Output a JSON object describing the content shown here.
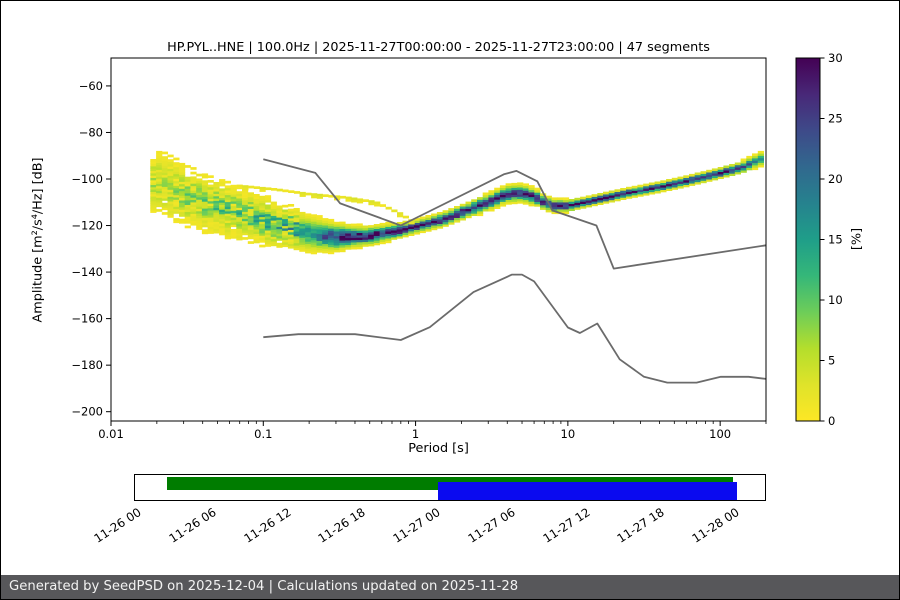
{
  "page": {
    "background": "#ffffff",
    "border_color": "#000000"
  },
  "footer": {
    "text": "Generated by SeedPSD on 2025-12-04 | Calculations updated on 2025-11-28",
    "background": "#57575a",
    "text_color": "#f2f2f2"
  },
  "chart_data": {
    "type": "heatmap",
    "title": "HP.PYL..HNE | 100.0Hz | 2025-11-27T00:00:00 - 2025-11-27T23:00:00 | 47 segments",
    "xlabel": "Period [s]",
    "ylabel": "Amplitude [m²/s⁴/Hz] [dB]",
    "xscale": "log",
    "xlim": [
      0.01,
      200
    ],
    "ylim": [
      -204,
      -48
    ],
    "xticks": [
      0.01,
      0.1,
      1,
      10,
      100
    ],
    "xtick_labels": [
      "0.01",
      "0.1",
      "1",
      "10",
      "100"
    ],
    "yticks": [
      -60,
      -80,
      -100,
      -120,
      -140,
      -160,
      -180,
      -200
    ],
    "ytick_labels": [
      "−60",
      "−80",
      "−100",
      "−120",
      "−140",
      "−160",
      "−180",
      "−200"
    ],
    "grid": false,
    "colorbar": {
      "label": "[%]",
      "min": 0,
      "max": 30,
      "ticks": [
        0,
        5,
        10,
        15,
        20,
        25,
        30
      ],
      "tick_labels": [
        "0",
        "5",
        "10",
        "15",
        "20",
        "25",
        "30"
      ],
      "colormap": "viridis_r"
    },
    "noise_models": {
      "color": "#6b6b6b",
      "high": [
        [
          0.1,
          -91.5
        ],
        [
          0.22,
          -97.4
        ],
        [
          0.32,
          -110.5
        ],
        [
          0.8,
          -120.0
        ],
        [
          3.8,
          -98.0
        ],
        [
          4.6,
          -96.5
        ],
        [
          6.3,
          -101.0
        ],
        [
          7.9,
          -113.5
        ],
        [
          15.4,
          -120.0
        ],
        [
          20.0,
          -138.5
        ],
        [
          200.0,
          -128.5
        ]
      ],
      "low": [
        [
          0.1,
          -168.0
        ],
        [
          0.17,
          -166.7
        ],
        [
          0.4,
          -166.7
        ],
        [
          0.8,
          -169.2
        ],
        [
          1.24,
          -163.7
        ],
        [
          2.4,
          -148.6
        ],
        [
          4.3,
          -141.1
        ],
        [
          5.0,
          -141.1
        ],
        [
          6.0,
          -144.0
        ],
        [
          10.0,
          -163.8
        ],
        [
          12.0,
          -166.2
        ],
        [
          15.6,
          -162.1
        ],
        [
          21.9,
          -177.5
        ],
        [
          31.6,
          -185.0
        ],
        [
          45.0,
          -187.5
        ],
        [
          70.0,
          -187.5
        ],
        [
          101.0,
          -185.0
        ],
        [
          154.0,
          -185.0
        ],
        [
          200.0,
          -185.9
        ]
      ]
    },
    "histogram": {
      "period_range": [
        0.019,
        192
      ],
      "db_bin": 1,
      "mode": [
        [
          0.02,
          -101
        ],
        [
          0.03,
          -107
        ],
        [
          0.05,
          -112
        ],
        [
          0.08,
          -116
        ],
        [
          0.12,
          -119.5
        ],
        [
          0.2,
          -123.5
        ],
        [
          0.3,
          -125
        ],
        [
          0.5,
          -124.5
        ],
        [
          0.8,
          -122
        ],
        [
          1.0,
          -120.5
        ],
        [
          1.5,
          -117.5
        ],
        [
          2,
          -114.5
        ],
        [
          3,
          -110
        ],
        [
          4,
          -106.5
        ],
        [
          5,
          -106
        ],
        [
          6,
          -107.5
        ],
        [
          7,
          -110
        ],
        [
          8,
          -111.5
        ],
        [
          10,
          -111.5
        ],
        [
          13,
          -110
        ],
        [
          18,
          -108
        ],
        [
          25,
          -106
        ],
        [
          40,
          -103.5
        ],
        [
          60,
          -101
        ],
        [
          100,
          -97.5
        ],
        [
          140,
          -95
        ],
        [
          185,
          -91.5
        ]
      ],
      "spread": [
        [
          0.02,
          7
        ],
        [
          0.04,
          6
        ],
        [
          0.08,
          5
        ],
        [
          0.15,
          4.2
        ],
        [
          0.25,
          3
        ],
        [
          0.4,
          2
        ],
        [
          0.7,
          1.5
        ],
        [
          1,
          1.2
        ],
        [
          2,
          1.4
        ],
        [
          4,
          1.7
        ],
        [
          6,
          1.6
        ],
        [
          8,
          1.3
        ],
        [
          12,
          1.0
        ],
        [
          30,
          0.9
        ],
        [
          100,
          1.0
        ],
        [
          185,
          1.3
        ]
      ],
      "peak_pct": [
        [
          0.02,
          5
        ],
        [
          0.04,
          7
        ],
        [
          0.08,
          9
        ],
        [
          0.15,
          12
        ],
        [
          0.22,
          18
        ],
        [
          0.3,
          26
        ],
        [
          0.4,
          30
        ],
        [
          1,
          30
        ],
        [
          2,
          29
        ],
        [
          4,
          26
        ],
        [
          6,
          27
        ],
        [
          10,
          30
        ],
        [
          50,
          30
        ],
        [
          120,
          28
        ],
        [
          185,
          18
        ]
      ],
      "branch": [
        [
          0.07,
          -103
        ],
        [
          0.12,
          -104.5
        ],
        [
          0.2,
          -106.5
        ],
        [
          0.35,
          -108
        ],
        [
          0.55,
          -110
        ],
        [
          0.8,
          -115
        ],
        [
          1.0,
          -119
        ]
      ],
      "branch_range": [
        0.07,
        1.0
      ]
    }
  },
  "timeline": {
    "labels": [
      "11-26 00",
      "11-26 06",
      "11-26 12",
      "11-26 18",
      "11-27 00",
      "11-27 06",
      "11-27 12",
      "11-27 18",
      "11-28 00"
    ],
    "coverage": {
      "color": "#007c00",
      "start_frac": 0.051,
      "end_frac": 0.946
    },
    "selected": {
      "color": "#0a0af0",
      "start_frac": 0.479,
      "end_frac": 0.953
    }
  }
}
